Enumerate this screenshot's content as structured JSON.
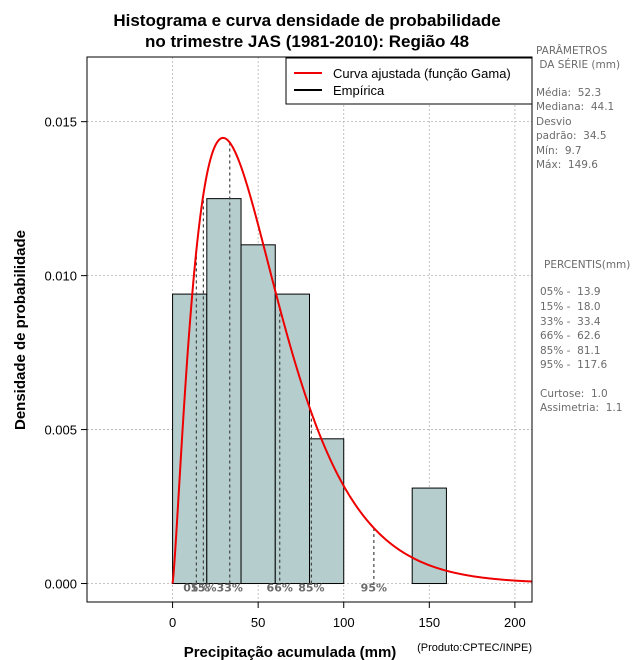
{
  "chart_data": {
    "type": "bar",
    "title_lines": [
      "Histograma e curva densidade de probabilidade",
      "no trimestre JAS (1981-2010): Região 48"
    ],
    "xlabel": "Precipitação acumulada (mm)",
    "ylabel": "Densidade de probabilidade",
    "credit": "(Produto:CPTEC/INPE)",
    "xlim": [
      -50,
      210
    ],
    "ylim": [
      -0.0006,
      0.0171
    ],
    "x_ticks": [
      0,
      50,
      100,
      150,
      200
    ],
    "x_tick_labels": [
      "0",
      "50",
      "100",
      "150",
      "200"
    ],
    "y_ticks": [
      0.0,
      0.005,
      0.01,
      0.015
    ],
    "y_tick_labels": [
      "0.000",
      "0.005",
      "0.010",
      "0.015"
    ],
    "grid": true,
    "bins": [
      {
        "start": 0,
        "end": 20,
        "density": 0.0094
      },
      {
        "start": 20,
        "end": 40,
        "density": 0.0125
      },
      {
        "start": 40,
        "end": 60,
        "density": 0.011
      },
      {
        "start": 60,
        "end": 80,
        "density": 0.0094
      },
      {
        "start": 80,
        "end": 100,
        "density": 0.0047
      },
      {
        "start": 140,
        "end": 160,
        "density": 0.0031
      }
    ],
    "bar_fill": "#b5cecd",
    "bar_stroke": "#000000",
    "curve": {
      "name": "Curva ajustada (função Gama)",
      "color": "#ee0000",
      "shape": 2.3,
      "scale": 22.7,
      "x_end": 210
    },
    "legend": {
      "position": "top-right",
      "entries": [
        {
          "label": "Curva ajustada (função Gama)",
          "color": "#ee0000"
        },
        {
          "label": "Empírica",
          "color": "#000000"
        }
      ]
    },
    "percentile_markers": [
      {
        "label": "05%",
        "value": 13.9
      },
      {
        "label": "15%",
        "value": 18.0
      },
      {
        "label": "33%",
        "value": 33.4
      },
      {
        "label": "66%",
        "value": 62.6
      },
      {
        "label": "85%",
        "value": 81.1
      },
      {
        "label": "95%",
        "value": 117.6
      }
    ],
    "marker_color": "#444444",
    "side_panel": {
      "params_heading": [
        "PARÂMETROS",
        " DA SÉRIE (mm)"
      ],
      "params": [
        "Média:  52.3",
        "Mediana:  44.1",
        "Desvio",
        "padrão:  34.5",
        "Mín:  9.7",
        "Máx:  149.6"
      ],
      "percentis_heading": "PERCENTIS(mm)",
      "percentis": [
        "05% -  13.9",
        "15% -  18.0",
        "33% -  33.4",
        "66% -  62.6",
        "85% -  81.1",
        "95% -  117.6"
      ],
      "stats": [
        "Curtose:  1.0",
        "Assimetria:  1.1"
      ]
    }
  }
}
